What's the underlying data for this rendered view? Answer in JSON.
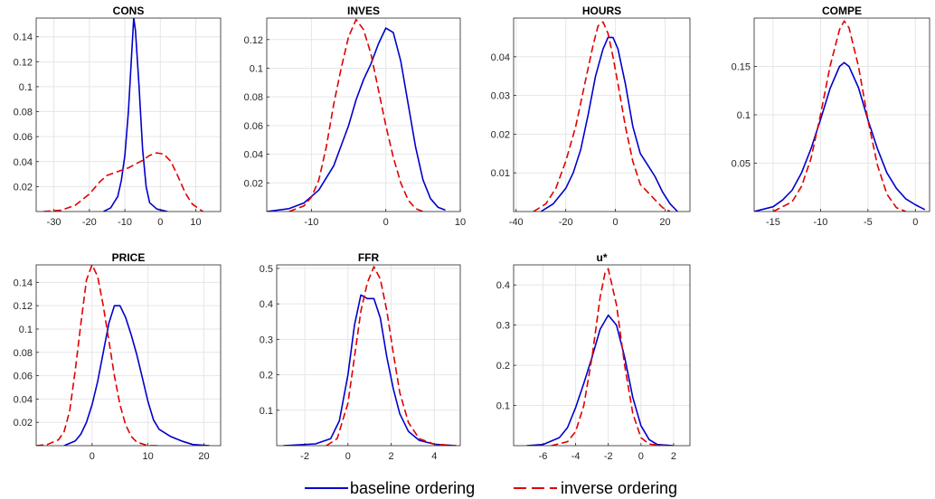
{
  "colors": {
    "baseline": "#0000cc",
    "inverse": "#e00000",
    "grid": "#e6e6e6",
    "axis": "#262626"
  },
  "legend": {
    "baseline_label": "baseline ordering",
    "inverse_label": "inverse ordering"
  },
  "chart_data": [
    {
      "type": "line",
      "title": "CONS",
      "xlim": [
        -35,
        17
      ],
      "ylim": [
        0,
        0.155
      ],
      "xticks": [
        -30,
        -20,
        -10,
        0,
        10
      ],
      "xtick_labels": [
        "-30",
        "-20",
        "-10",
        "0",
        "10"
      ],
      "yticks": [
        0.02,
        0.04,
        0.06,
        0.08,
        0.1,
        0.12,
        0.14
      ],
      "ytick_labels": [
        "0.02",
        "0.04",
        "0.06",
        "0.08",
        "0.1",
        "0.12",
        "0.14"
      ],
      "series": [
        {
          "name": "baseline ordering",
          "style": "solid",
          "color": "#0000cc",
          "x": [
            -16,
            -14,
            -12,
            -11,
            -10,
            -9,
            -8,
            -7.5,
            -7,
            -6,
            -5,
            -4,
            -3,
            -1,
            2
          ],
          "y": [
            0,
            0.003,
            0.012,
            0.025,
            0.045,
            0.08,
            0.13,
            0.155,
            0.145,
            0.1,
            0.05,
            0.02,
            0.007,
            0.002,
            0
          ]
        },
        {
          "name": "inverse ordering",
          "style": "dashed",
          "color": "#e00000",
          "x": [
            -33,
            -28,
            -24,
            -20,
            -17,
            -15,
            -13,
            -11,
            -9,
            -7,
            -5,
            -3,
            -1,
            1,
            3,
            5,
            7,
            9,
            12
          ],
          "y": [
            0,
            0.001,
            0.005,
            0.014,
            0.024,
            0.029,
            0.031,
            0.033,
            0.035,
            0.038,
            0.041,
            0.045,
            0.047,
            0.046,
            0.04,
            0.028,
            0.015,
            0.006,
            0
          ]
        }
      ]
    },
    {
      "type": "line",
      "title": "INVES",
      "xlim": [
        -16,
        10
      ],
      "ylim": [
        0,
        0.135
      ],
      "xticks": [
        -10,
        0,
        10
      ],
      "xtick_labels": [
        "-10",
        "0",
        "10"
      ],
      "yticks": [
        0.02,
        0.04,
        0.06,
        0.08,
        0.1,
        0.12
      ],
      "ytick_labels": [
        "0.02",
        "0.04",
        "0.06",
        "0.08",
        "0.1",
        "0.12"
      ],
      "series": [
        {
          "name": "baseline ordering",
          "style": "solid",
          "color": "#0000cc",
          "x": [
            -16,
            -13,
            -11,
            -9,
            -7,
            -5,
            -4,
            -3,
            -2,
            -1,
            0,
            1,
            2,
            3,
            4,
            5,
            6,
            7,
            8
          ],
          "y": [
            0,
            0.002,
            0.006,
            0.015,
            0.032,
            0.06,
            0.078,
            0.092,
            0.103,
            0.117,
            0.128,
            0.125,
            0.105,
            0.075,
            0.045,
            0.022,
            0.009,
            0.003,
            0.001
          ]
        },
        {
          "name": "inverse ordering",
          "style": "dashed",
          "color": "#e00000",
          "x": [
            -13,
            -11,
            -10,
            -9,
            -8,
            -7,
            -6,
            -5,
            -4,
            -3,
            -2,
            -1,
            0,
            1,
            2,
            3,
            4,
            5
          ],
          "y": [
            0,
            0.004,
            0.01,
            0.022,
            0.045,
            0.075,
            0.1,
            0.122,
            0.134,
            0.127,
            0.11,
            0.085,
            0.06,
            0.038,
            0.02,
            0.008,
            0.002,
            0
          ]
        }
      ]
    },
    {
      "type": "line",
      "title": "HOURS",
      "xlim": [
        -41,
        30
      ],
      "ylim": [
        0,
        0.05
      ],
      "xticks": [
        -40,
        -20,
        0,
        20
      ],
      "xtick_labels": [
        "-40",
        "-20",
        "0",
        "20"
      ],
      "yticks": [
        0.01,
        0.02,
        0.03,
        0.04
      ],
      "ytick_labels": [
        "0.01",
        "0.02",
        "0.03",
        "0.04"
      ],
      "series": [
        {
          "name": "baseline ordering",
          "style": "solid",
          "color": "#0000cc",
          "x": [
            -30,
            -25,
            -20,
            -17,
            -14,
            -11,
            -8,
            -5,
            -3,
            -1,
            1,
            4,
            7,
            10,
            13,
            16,
            19,
            22,
            25
          ],
          "y": [
            0,
            0.002,
            0.006,
            0.01,
            0.016,
            0.025,
            0.035,
            0.042,
            0.045,
            0.045,
            0.042,
            0.033,
            0.022,
            0.015,
            0.012,
            0.009,
            0.005,
            0.002,
            0
          ]
        },
        {
          "name": "inverse ordering",
          "style": "dashed",
          "color": "#e00000",
          "x": [
            -33,
            -28,
            -24,
            -20,
            -16,
            -12,
            -9,
            -7,
            -5,
            -3,
            -1,
            1,
            4,
            7,
            10,
            13,
            16,
            19,
            22
          ],
          "y": [
            0,
            0.002,
            0.006,
            0.013,
            0.022,
            0.034,
            0.043,
            0.048,
            0.049,
            0.046,
            0.04,
            0.033,
            0.022,
            0.013,
            0.007,
            0.005,
            0.003,
            0.001,
            0
          ]
        }
      ]
    },
    {
      "type": "line",
      "title": "COMPE",
      "xlim": [
        -17,
        1.5
      ],
      "ylim": [
        0,
        0.2
      ],
      "xticks": [
        -15,
        -10,
        -5,
        0
      ],
      "xtick_labels": [
        "-15",
        "-10",
        "-5",
        "0"
      ],
      "yticks": [
        0.05,
        0.1,
        0.15
      ],
      "ytick_labels": [
        "0.05",
        "0.1",
        "0.15"
      ],
      "series": [
        {
          "name": "baseline ordering",
          "style": "solid",
          "color": "#0000cc",
          "x": [
            -17,
            -15,
            -14,
            -13,
            -12,
            -11,
            -10,
            -9,
            -8,
            -7.5,
            -7,
            -6,
            -5,
            -4,
            -3,
            -2,
            -1,
            0,
            1
          ],
          "y": [
            0,
            0.005,
            0.012,
            0.022,
            0.04,
            0.065,
            0.095,
            0.127,
            0.15,
            0.154,
            0.15,
            0.128,
            0.095,
            0.065,
            0.04,
            0.024,
            0.013,
            0.007,
            0.002
          ]
        },
        {
          "name": "inverse ordering",
          "style": "dashed",
          "color": "#e00000",
          "x": [
            -15,
            -13,
            -12,
            -11,
            -10,
            -9,
            -8,
            -7.5,
            -7,
            -6,
            -5,
            -4,
            -3,
            -2,
            -1
          ],
          "y": [
            0,
            0.01,
            0.026,
            0.055,
            0.1,
            0.15,
            0.188,
            0.197,
            0.19,
            0.15,
            0.095,
            0.048,
            0.018,
            0.004,
            0
          ]
        }
      ]
    },
    {
      "type": "line",
      "title": "PRICE",
      "xlim": [
        -10,
        23
      ],
      "ylim": [
        0,
        0.155
      ],
      "xticks": [
        0,
        10,
        20
      ],
      "xtick_labels": [
        "0",
        "10",
        "20"
      ],
      "yticks": [
        0.02,
        0.04,
        0.06,
        0.08,
        0.1,
        0.12,
        0.14
      ],
      "ytick_labels": [
        "0.02",
        "0.04",
        "0.06",
        "0.08",
        "0.1",
        "0.12",
        "0.14"
      ],
      "series": [
        {
          "name": "baseline ordering",
          "style": "solid",
          "color": "#0000cc",
          "x": [
            -5,
            -3,
            -2,
            -1,
            0,
            1,
            2,
            3,
            4,
            5,
            6,
            7,
            8,
            9,
            10,
            11,
            12,
            14,
            16,
            18,
            21
          ],
          "y": [
            0,
            0.004,
            0.01,
            0.02,
            0.035,
            0.055,
            0.08,
            0.105,
            0.12,
            0.12,
            0.11,
            0.095,
            0.078,
            0.058,
            0.038,
            0.022,
            0.014,
            0.008,
            0.004,
            0.001,
            0
          ]
        },
        {
          "name": "inverse ordering",
          "style": "dashed",
          "color": "#e00000",
          "x": [
            -10,
            -8,
            -6,
            -5,
            -4,
            -3,
            -2,
            -1,
            0,
            1,
            2,
            3,
            4,
            5,
            6,
            7,
            8,
            10,
            12
          ],
          "y": [
            0,
            0.001,
            0.005,
            0.012,
            0.03,
            0.065,
            0.105,
            0.142,
            0.155,
            0.145,
            0.12,
            0.09,
            0.06,
            0.035,
            0.018,
            0.008,
            0.003,
            0,
            0
          ]
        }
      ]
    },
    {
      "type": "line",
      "title": "FFR",
      "xlim": [
        -3.3,
        5.2
      ],
      "ylim": [
        0,
        0.51
      ],
      "xticks": [
        -2,
        0,
        2,
        4
      ],
      "xtick_labels": [
        "-2",
        "0",
        "2",
        "4"
      ],
      "yticks": [
        0.1,
        0.2,
        0.3,
        0.4,
        0.5
      ],
      "ytick_labels": [
        "0.1",
        "0.2",
        "0.3",
        "0.4",
        "0.5"
      ],
      "series": [
        {
          "name": "baseline ordering",
          "style": "solid",
          "color": "#0000cc",
          "x": [
            -3,
            -1.5,
            -0.8,
            -0.4,
            0,
            0.3,
            0.6,
            0.9,
            1.2,
            1.5,
            1.8,
            2.1,
            2.4,
            2.8,
            3.3,
            4,
            5
          ],
          "y": [
            0,
            0.005,
            0.02,
            0.07,
            0.2,
            0.34,
            0.425,
            0.415,
            0.415,
            0.36,
            0.25,
            0.16,
            0.09,
            0.04,
            0.015,
            0.004,
            0
          ]
        },
        {
          "name": "inverse ordering",
          "style": "dashed",
          "color": "#e00000",
          "x": [
            -1,
            -0.5,
            0,
            0.3,
            0.6,
            0.9,
            1.2,
            1.5,
            1.8,
            2.1,
            2.4,
            2.8,
            3.3,
            4,
            5
          ],
          "y": [
            0,
            0.02,
            0.12,
            0.25,
            0.38,
            0.46,
            0.505,
            0.47,
            0.38,
            0.26,
            0.15,
            0.065,
            0.02,
            0.004,
            0
          ]
        }
      ]
    },
    {
      "type": "line",
      "title": "u*",
      "xlim": [
        -7.8,
        3
      ],
      "ylim": [
        0,
        0.45
      ],
      "xticks": [
        -6,
        -4,
        -2,
        0,
        2
      ],
      "xtick_labels": [
        "-6",
        "-4",
        "-2",
        "0",
        "2"
      ],
      "yticks": [
        0.1,
        0.2,
        0.3,
        0.4
      ],
      "ytick_labels": [
        "0.1",
        "0.2",
        "0.3",
        "0.4"
      ],
      "series": [
        {
          "name": "baseline ordering",
          "style": "solid",
          "color": "#0000cc",
          "x": [
            -7,
            -6,
            -5,
            -4.5,
            -4,
            -3.5,
            -3,
            -2.5,
            -2,
            -1.5,
            -1,
            -0.5,
            0,
            0.5,
            1,
            2
          ],
          "y": [
            0,
            0.003,
            0.02,
            0.045,
            0.095,
            0.155,
            0.22,
            0.29,
            0.325,
            0.3,
            0.22,
            0.12,
            0.05,
            0.015,
            0.003,
            0
          ]
        },
        {
          "name": "inverse ordering",
          "style": "dashed",
          "color": "#e00000",
          "x": [
            -5.5,
            -4.5,
            -4,
            -3.5,
            -3,
            -2.5,
            -2.2,
            -2,
            -1.5,
            -1,
            -0.5,
            0,
            0.5,
            1.5
          ],
          "y": [
            0,
            0.01,
            0.035,
            0.1,
            0.22,
            0.37,
            0.43,
            0.44,
            0.35,
            0.2,
            0.08,
            0.02,
            0.004,
            0
          ]
        }
      ]
    }
  ]
}
